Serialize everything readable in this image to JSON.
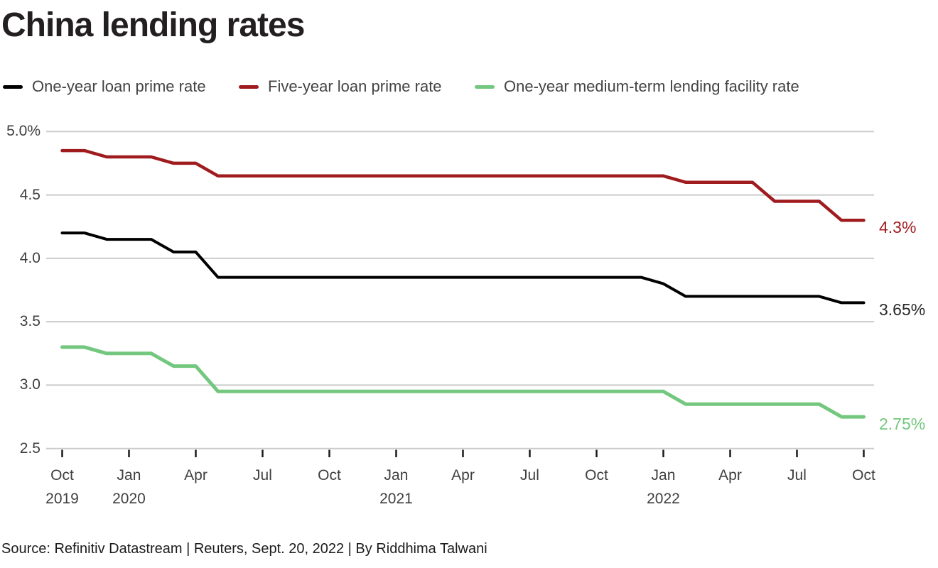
{
  "title": "China lending rates",
  "source_line": "Source: Refinitiv Datastream | Reuters, Sept. 20, 2022 | By Riddhima Talwani",
  "colors": {
    "background": "#ffffff",
    "grid": "#cbcbcb",
    "axis_tick": "#1a1a1a",
    "axis_text": "#3f3f3f",
    "title_text": "#231f20"
  },
  "legend": [
    {
      "label": "One-year loan prime rate",
      "color": "#000000"
    },
    {
      "label": "Five-year loan prime rate",
      "color": "#9f1b1e"
    },
    {
      "label": "One-year medium-term lending facility rate",
      "color": "#73c77e"
    }
  ],
  "chart_data": {
    "type": "line",
    "title": "China lending rates",
    "x_unit": "month",
    "x_start": "Oct 2019",
    "x_end": "Oct 2022",
    "n_points": 37,
    "ylim": [
      2.5,
      5.0
    ],
    "grid": true,
    "legend_position": "top",
    "y_ticks": [
      {
        "value": 5.0,
        "label": "5.0%"
      },
      {
        "value": 4.5,
        "label": "4.5"
      },
      {
        "value": 4.0,
        "label": "4.0"
      },
      {
        "value": 3.5,
        "label": "3.5"
      },
      {
        "value": 3.0,
        "label": "3.0"
      },
      {
        "value": 2.5,
        "label": "2.5"
      }
    ],
    "x_ticks": [
      {
        "index": 0,
        "month": "Oct",
        "year": "2019"
      },
      {
        "index": 3,
        "month": "Jan",
        "year": "2020"
      },
      {
        "index": 6,
        "month": "Apr"
      },
      {
        "index": 9,
        "month": "Jul"
      },
      {
        "index": 12,
        "month": "Oct"
      },
      {
        "index": 15,
        "month": "Jan",
        "year": "2021"
      },
      {
        "index": 18,
        "month": "Apr"
      },
      {
        "index": 21,
        "month": "Jul"
      },
      {
        "index": 24,
        "month": "Oct"
      },
      {
        "index": 27,
        "month": "Jan",
        "year": "2022"
      },
      {
        "index": 30,
        "month": "Apr"
      },
      {
        "index": 33,
        "month": "Jul"
      },
      {
        "index": 36,
        "month": "Oct"
      }
    ],
    "series": [
      {
        "name": "One-year loan prime rate",
        "color": "#000000",
        "label_color": "#2b2b2b",
        "stroke_width": 4,
        "end_label": "3.65%",
        "values": [
          4.2,
          4.2,
          4.15,
          4.15,
          4.15,
          4.05,
          4.05,
          3.85,
          3.85,
          3.85,
          3.85,
          3.85,
          3.85,
          3.85,
          3.85,
          3.85,
          3.85,
          3.85,
          3.85,
          3.85,
          3.85,
          3.85,
          3.85,
          3.85,
          3.85,
          3.85,
          3.85,
          3.8,
          3.7,
          3.7,
          3.7,
          3.7,
          3.7,
          3.7,
          3.7,
          3.65,
          3.65
        ]
      },
      {
        "name": "Five-year loan prime rate",
        "color": "#9f1b1e",
        "label_color": "#9f1b1e",
        "stroke_width": 4.5,
        "end_label": "4.3%",
        "values": [
          4.85,
          4.85,
          4.8,
          4.8,
          4.8,
          4.75,
          4.75,
          4.65,
          4.65,
          4.65,
          4.65,
          4.65,
          4.65,
          4.65,
          4.65,
          4.65,
          4.65,
          4.65,
          4.65,
          4.65,
          4.65,
          4.65,
          4.65,
          4.65,
          4.65,
          4.65,
          4.65,
          4.65,
          4.6,
          4.6,
          4.6,
          4.6,
          4.45,
          4.45,
          4.45,
          4.3,
          4.3
        ]
      },
      {
        "name": "One-year medium-term lending facility rate",
        "color": "#73c77e",
        "label_color": "#73c77e",
        "stroke_width": 5,
        "end_label": "2.75%",
        "values": [
          3.3,
          3.3,
          3.25,
          3.25,
          3.25,
          3.15,
          3.15,
          2.95,
          2.95,
          2.95,
          2.95,
          2.95,
          2.95,
          2.95,
          2.95,
          2.95,
          2.95,
          2.95,
          2.95,
          2.95,
          2.95,
          2.95,
          2.95,
          2.95,
          2.95,
          2.95,
          2.95,
          2.95,
          2.85,
          2.85,
          2.85,
          2.85,
          2.85,
          2.85,
          2.85,
          2.75,
          2.75
        ]
      }
    ]
  }
}
